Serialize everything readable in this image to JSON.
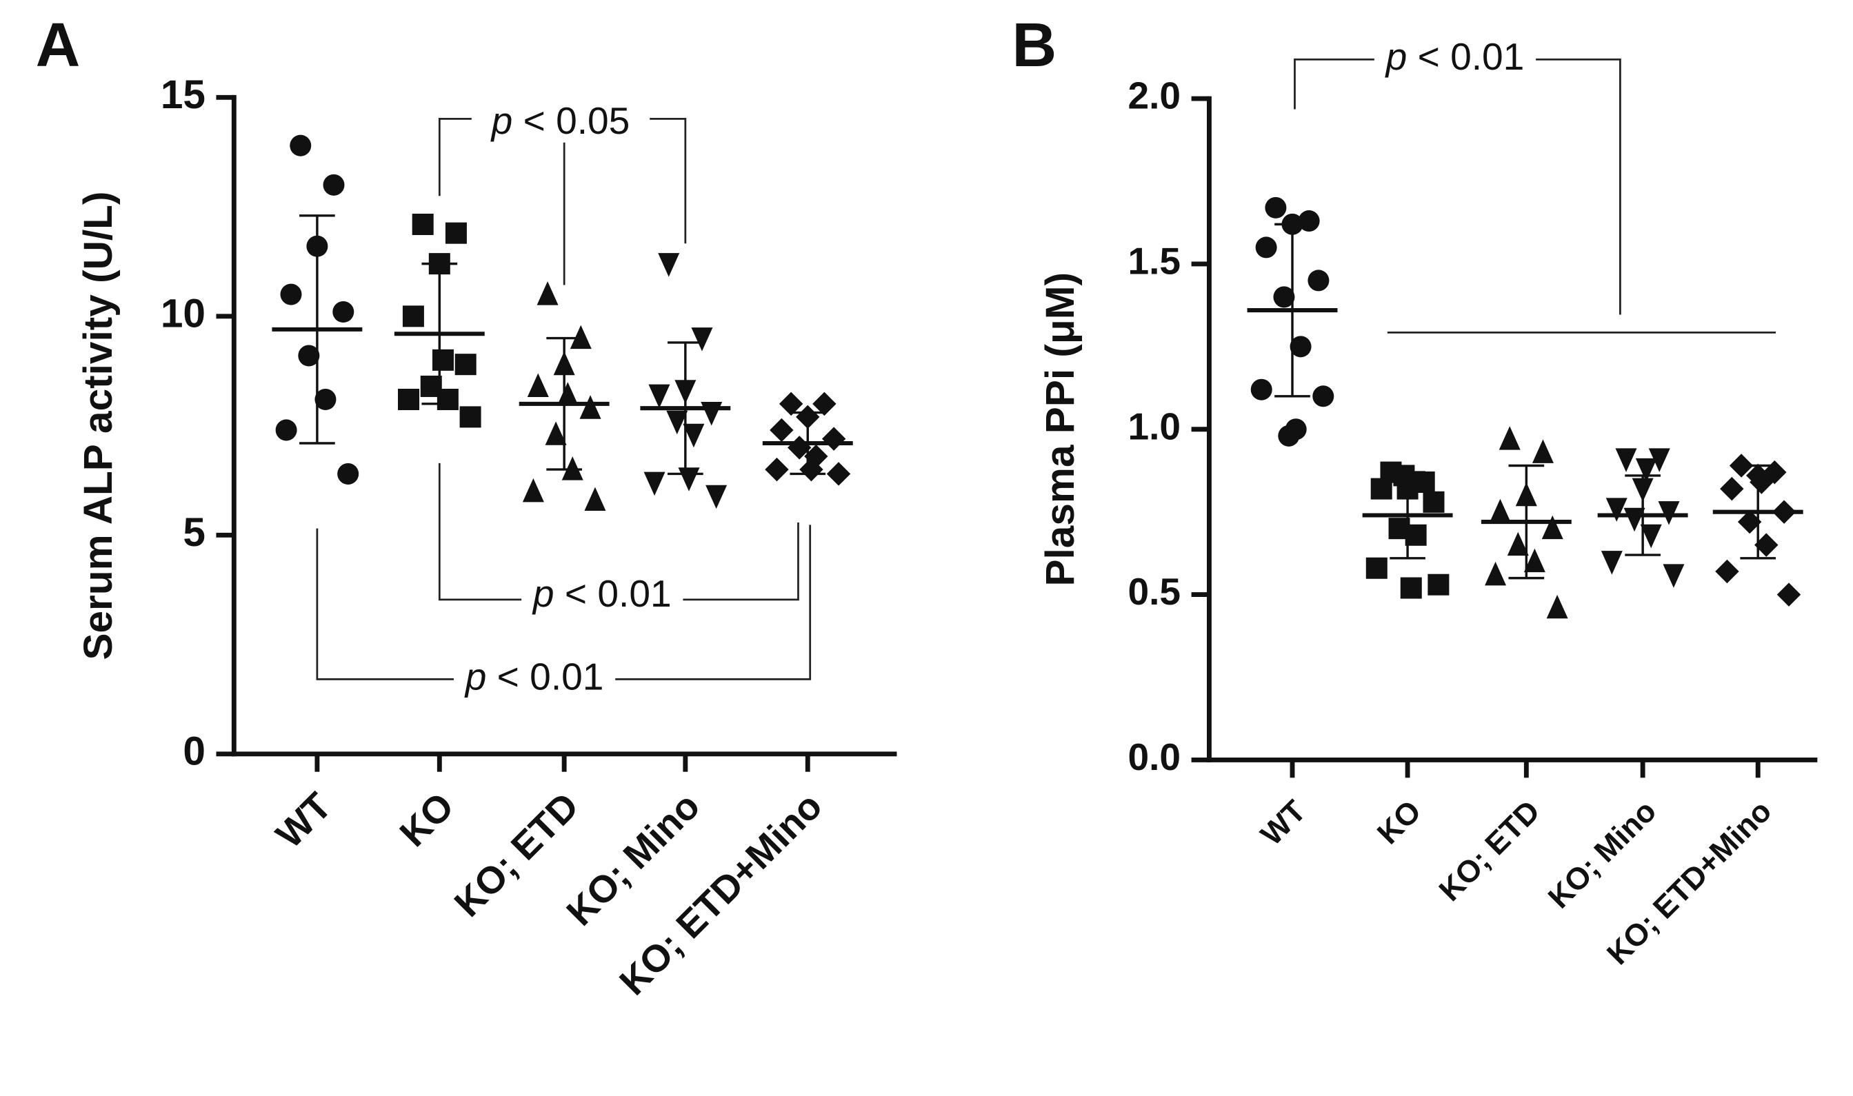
{
  "chart_data": [
    {
      "type": "dot",
      "label": "A",
      "y_label": "Serum ALP activity (U/L)",
      "categories": [
        "WT",
        "KO",
        "KO; ETD",
        "KO; Mino",
        "KO; ETD+Mino"
      ],
      "markers": [
        "circle",
        "square",
        "triangle-up",
        "triangle-down",
        "diamond"
      ],
      "values": [
        [
          13.9,
          13.0,
          11.6,
          10.5,
          10.1,
          9.1,
          8.1,
          7.4,
          6.4
        ],
        [
          12.1,
          11.9,
          11.2,
          10.0,
          8.9,
          8.4,
          8.1,
          8.1,
          7.7,
          9.0
        ],
        [
          10.5,
          9.5,
          8.9,
          8.4,
          7.9,
          7.3,
          6.5,
          6.0,
          5.8,
          8.2
        ],
        [
          11.2,
          9.5,
          8.3,
          8.2,
          7.8,
          7.6,
          7.3,
          6.2,
          5.9,
          6.3
        ],
        [
          8.0,
          8.0,
          7.7,
          7.4,
          7.2,
          7.0,
          6.8,
          6.5,
          6.4,
          6.5
        ]
      ],
      "means": [
        9.7,
        9.6,
        8.0,
        7.9,
        7.1
      ],
      "sds": [
        2.6,
        1.6,
        1.5,
        1.5,
        0.7
      ],
      "ylim": [
        0,
        15
      ],
      "yticks": [
        0,
        5,
        10,
        15
      ],
      "annotations": [
        "p < 0.05",
        "p < 0.01",
        "p < 0.01"
      ]
    },
    {
      "type": "dot",
      "label": "B",
      "y_label": "Plasma PPi (μM)",
      "categories": [
        "WT",
        "KO",
        "KO; ETD",
        "KO; Mino",
        "KO; ETD+Mino"
      ],
      "markers": [
        "circle",
        "square",
        "triangle-up",
        "triangle-down",
        "diamond"
      ],
      "values": [
        [
          1.67,
          1.63,
          1.62,
          1.55,
          1.45,
          1.4,
          1.25,
          1.12,
          1.1,
          1.0,
          0.98
        ],
        [
          0.87,
          0.84,
          0.82,
          0.82,
          0.78,
          0.7,
          0.68,
          0.58,
          0.53,
          0.52,
          0.86
        ],
        [
          0.97,
          0.93,
          0.8,
          0.75,
          0.7,
          0.65,
          0.6,
          0.56,
          0.46
        ],
        [
          0.91,
          0.91,
          0.82,
          0.76,
          0.75,
          0.73,
          0.68,
          0.6,
          0.56,
          0.88
        ],
        [
          0.89,
          0.87,
          0.86,
          0.82,
          0.75,
          0.72,
          0.65,
          0.57,
          0.5,
          0.84
        ]
      ],
      "means": [
        1.36,
        0.74,
        0.72,
        0.74,
        0.75
      ],
      "sds": [
        0.26,
        0.13,
        0.17,
        0.12,
        0.14
      ],
      "ylim": [
        0,
        2
      ],
      "yticks": [
        {
          "value": 0,
          "label": "0.0"
        },
        0.5,
        {
          "value": 1,
          "label": "1.0"
        },
        1.5,
        {
          "value": 2,
          "label": "2.0"
        }
      ],
      "annotations": [
        "p < 0.01"
      ]
    }
  ]
}
